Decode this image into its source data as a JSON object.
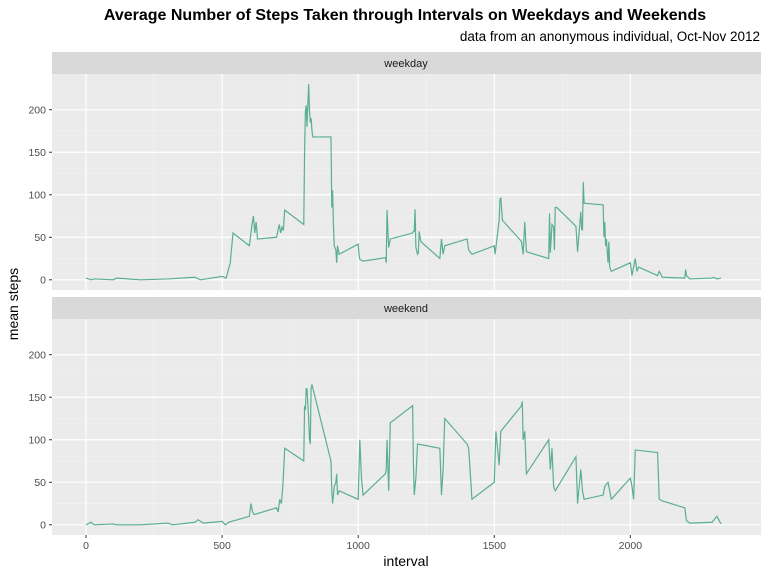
{
  "chart_data": {
    "type": "line",
    "title": "Average Number of Steps Taken through Intervals on Weekdays and Weekends",
    "subtitle": "data from an anonymous individual, Oct-Nov 2012",
    "xlabel": "interval",
    "ylabel": "mean steps",
    "xlim": [
      -125,
      2480
    ],
    "ylim": [
      -12,
      242
    ],
    "x_ticks": [
      0,
      500,
      1000,
      1500,
      2000
    ],
    "x_tick_labels": [
      "0",
      "500",
      "1000",
      "1500",
      "2000"
    ],
    "y_ticks": [
      0,
      50,
      100,
      150,
      200
    ],
    "y_tick_labels": [
      "0",
      "50",
      "100",
      "150",
      "200"
    ],
    "grid": true,
    "line_color": "#5aae92",
    "panel_background": "#ebebeb",
    "strip_background": "#d9d9d9",
    "facets": [
      {
        "label": "weekday",
        "x": [
          0,
          30,
          50,
          100,
          120,
          200,
          300,
          400,
          450,
          500,
          515,
          540,
          550,
          600,
          610,
          620,
          630,
          640,
          650,
          700,
          710,
          720,
          730,
          740,
          750,
          800,
          805,
          810,
          815,
          820,
          830,
          835,
          840,
          845,
          850,
          855,
          900,
          905,
          910,
          915,
          920,
          930,
          935,
          940,
          950,
          1000,
          1005,
          1010,
          1030,
          1100,
          1105,
          1110,
          1120,
          1130,
          1200,
          1205,
          1210,
          1215,
          1220,
          1230,
          1235,
          1240,
          1250,
          1300,
          1310,
          1320,
          1330,
          1400,
          1410,
          1430,
          1500,
          1505,
          1510,
          1530,
          1535,
          1540,
          1550,
          1600,
          1610,
          1620,
          1630,
          1700,
          1705,
          1710,
          1720,
          1730,
          1735,
          1740,
          1750,
          1800,
          1810,
          1830,
          1835,
          1840,
          1845,
          1850,
          1900,
          1905,
          1910,
          1915,
          1920,
          1930,
          1935,
          1940,
          1950,
          2000,
          2010,
          2030,
          2040,
          2050,
          2100,
          2110,
          2130,
          2200,
          2205,
          2210,
          2230,
          2300,
          2310,
          2330,
          2355
        ],
        "y": [
          2,
          0,
          1,
          0,
          2,
          0,
          1,
          3,
          0,
          4,
          2,
          20,
          55,
          40,
          65,
          75,
          55,
          68,
          48,
          50,
          65,
          55,
          62,
          58,
          82,
          65,
          150,
          198,
          205,
          180,
          230,
          200,
          185,
          190,
          176,
          168,
          168,
          85,
          105,
          65,
          40,
          35,
          20,
          40,
          30,
          42,
          30,
          24,
          22,
          26,
          20,
          82,
          38,
          48,
          55,
          57,
          57,
          83,
          38,
          30,
          32,
          57,
          45,
          25,
          48,
          30,
          40,
          48,
          35,
          30,
          40,
          30,
          38,
          70,
          95,
          96,
          70,
          45,
          30,
          68,
          33,
          25,
          78,
          32,
          65,
          62,
          35,
          85,
          85,
          63,
          33,
          80,
          60,
          58,
          115,
          90,
          88,
          50,
          68,
          40,
          48,
          20,
          45,
          15,
          10,
          20,
          5,
          25,
          10,
          15,
          5,
          10,
          3,
          2,
          12,
          5,
          1,
          2,
          3,
          1,
          2
        ],
        "x_plot": [
          0,
          18,
          30,
          60,
          72,
          120,
          180,
          240,
          260,
          300,
          315,
          330,
          340,
          360,
          370,
          375,
          380,
          385,
          390,
          420,
          430,
          435,
          440,
          445,
          450,
          480,
          483,
          486,
          489,
          492,
          498,
          501,
          504,
          507,
          510,
          513,
          540,
          543,
          546,
          549,
          552,
          558,
          561,
          564,
          570,
          600,
          603,
          606,
          618,
          660,
          663,
          666,
          672,
          678,
          720,
          723,
          726,
          729,
          732,
          738,
          741,
          744,
          750,
          780,
          786,
          792,
          798,
          840,
          846,
          858,
          900,
          903,
          906,
          918,
          921,
          924,
          930,
          960,
          966,
          972,
          978,
          1020,
          1023,
          1026,
          1032,
          1038,
          1041,
          1044,
          1050,
          1080,
          1086,
          1098,
          1101,
          1104,
          1107,
          1110,
          1140,
          1143,
          1146,
          1149,
          1152,
          1158,
          1161,
          1164,
          1170,
          1200,
          1206,
          1218,
          1224,
          1230,
          1260,
          1266,
          1278,
          1320,
          1323,
          1326,
          1338,
          1380,
          1386,
          1398,
          1413
        ]
      },
      {
        "label": "weekend",
        "x": [
          0,
          30,
          50,
          100,
          120,
          200,
          300,
          330,
          400,
          420,
          450,
          500,
          520,
          540,
          600,
          610,
          620,
          630,
          700,
          710,
          720,
          730,
          740,
          750,
          800,
          805,
          810,
          815,
          820,
          830,
          835,
          840,
          845,
          850,
          900,
          905,
          910,
          915,
          920,
          930,
          935,
          940,
          950,
          1000,
          1010,
          1020,
          1030,
          1100,
          1105,
          1110,
          1120,
          1130,
          1200,
          1205,
          1210,
          1215,
          1220,
          1230,
          1300,
          1310,
          1320,
          1330,
          1400,
          1410,
          1430,
          1500,
          1510,
          1520,
          1530,
          1540,
          1600,
          1605,
          1610,
          1620,
          1630,
          1700,
          1710,
          1720,
          1730,
          1740,
          1800,
          1810,
          1830,
          1840,
          1850,
          1900,
          1910,
          1930,
          1950,
          2000,
          2010,
          2020,
          2030,
          2100,
          2110,
          2130,
          2200,
          2210,
          2230,
          2300,
          2330,
          2355
        ],
        "y": [
          0,
          3,
          0,
          1,
          0,
          0,
          2,
          0,
          3,
          6,
          2,
          4,
          0,
          3,
          10,
          25,
          15,
          12,
          20,
          15,
          30,
          25,
          50,
          90,
          75,
          140,
          135,
          160,
          160,
          125,
          100,
          95,
          160,
          165,
          75,
          40,
          25,
          35,
          45,
          50,
          60,
          35,
          40,
          30,
          100,
          55,
          35,
          60,
          65,
          100,
          40,
          120,
          140,
          70,
          35,
          45,
          55,
          95,
          90,
          35,
          65,
          125,
          95,
          90,
          30,
          50,
          110,
          90,
          70,
          110,
          140,
          145,
          100,
          110,
          60,
          100,
          65,
          90,
          45,
          40,
          80,
          25,
          65,
          40,
          30,
          35,
          45,
          50,
          30,
          55,
          45,
          30,
          88,
          85,
          30,
          28,
          20,
          5,
          2,
          3,
          10,
          1
        ],
        "x_plot": [
          0,
          18,
          30,
          60,
          72,
          120,
          180,
          198,
          240,
          252,
          270,
          300,
          312,
          324,
          360,
          366,
          372,
          378,
          420,
          426,
          432,
          438,
          444,
          450,
          480,
          483,
          486,
          489,
          492,
          498,
          501,
          504,
          507,
          510,
          540,
          543,
          546,
          549,
          552,
          558,
          561,
          564,
          570,
          600,
          606,
          612,
          618,
          660,
          663,
          666,
          672,
          678,
          720,
          723,
          726,
          729,
          732,
          738,
          780,
          786,
          792,
          798,
          840,
          846,
          858,
          900,
          906,
          912,
          918,
          924,
          960,
          963,
          966,
          972,
          978,
          1020,
          1026,
          1032,
          1038,
          1044,
          1080,
          1086,
          1098,
          1104,
          1110,
          1140,
          1146,
          1158,
          1170,
          1200,
          1206,
          1212,
          1218,
          1260,
          1266,
          1278,
          1320,
          1326,
          1338,
          1380,
          1398,
          1413
        ]
      }
    ]
  }
}
